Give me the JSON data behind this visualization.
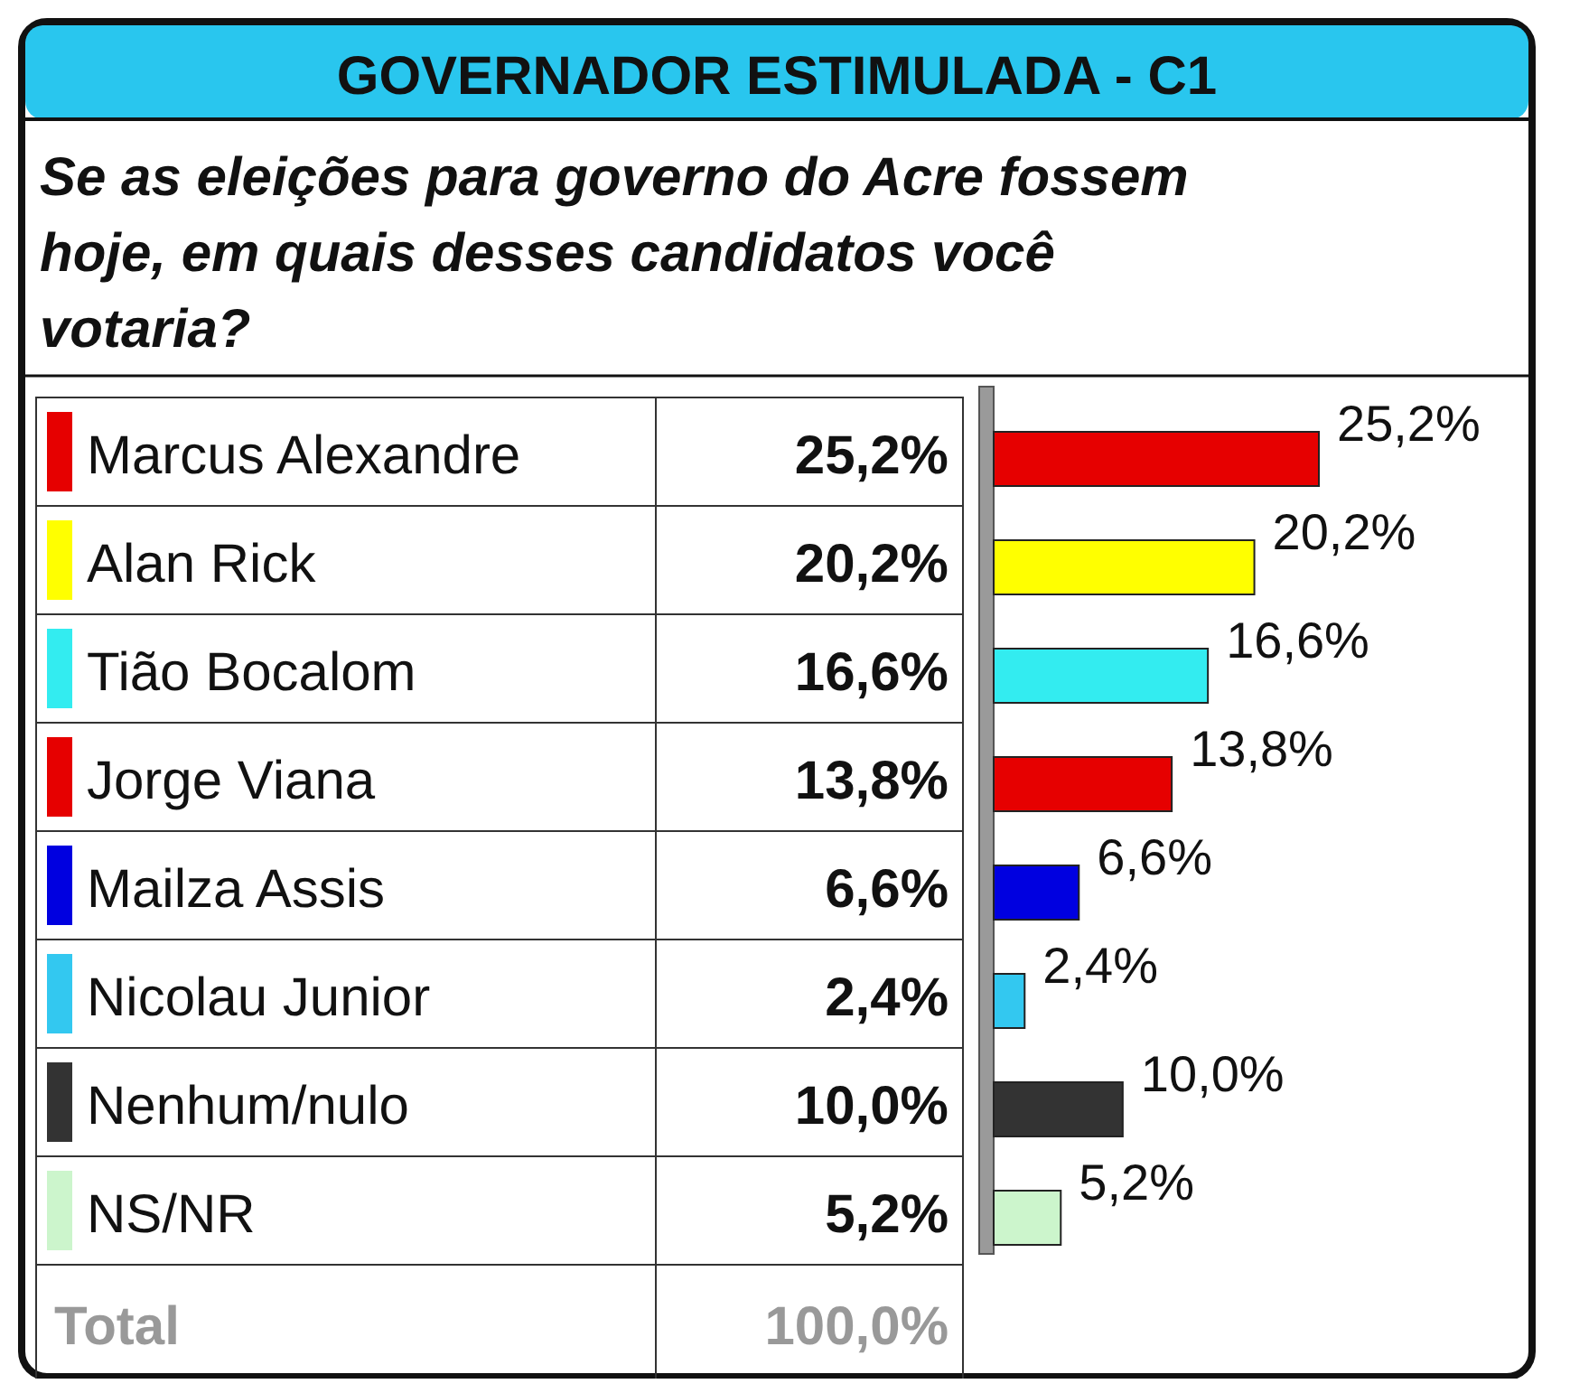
{
  "chart_data": {
    "type": "bar",
    "orientation": "horizontal",
    "title": "GOVERNADOR ESTIMULADA - C1",
    "subtitle": "Se as eleições para governo do Acre fossem hoje, em quais desses candidatos você votaria?",
    "categories": [
      "Marcus Alexandre",
      "Alan Rick",
      "Tião Bocalom",
      "Jorge Viana",
      "Mailza Assis",
      "Nicolau Junior",
      "Nenhum/nulo",
      "NS/NR"
    ],
    "values": [
      25.2,
      20.2,
      16.6,
      13.8,
      6.6,
      2.4,
      10.0,
      5.2
    ],
    "colors": [
      "#e60000",
      "#ffff00",
      "#33ecf0",
      "#e60000",
      "#0000e0",
      "#33c8f0",
      "#333333",
      "#ccf5cc"
    ],
    "value_labels": [
      "25,2%",
      "20,2%",
      "16,6%",
      "13,8%",
      "6,6%",
      "2,4%",
      "10,0%",
      "5,2%"
    ],
    "annotations": [
      "Total",
      "100,0%"
    ]
  }
}
